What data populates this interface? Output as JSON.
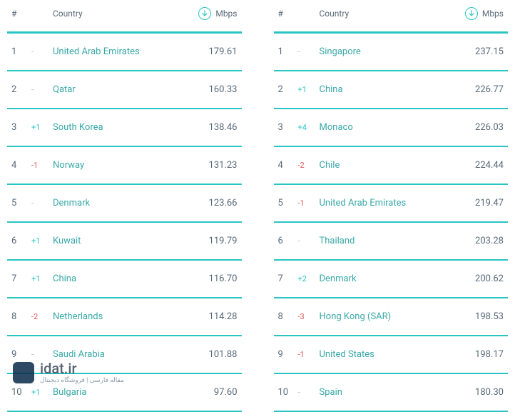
{
  "colors": {
    "divider": "#2bc4c4",
    "text_muted": "#5a6a7a",
    "link": "#3aa8a8",
    "change_up": "#2bc4c4",
    "change_down": "#e05a5a",
    "change_dash": "#b0b8c0",
    "background": "#ffffff"
  },
  "typography": {
    "header_fontsize": 12,
    "row_fontsize": 13,
    "change_fontsize": 11
  },
  "headers": {
    "rank": "#",
    "country": "Country",
    "mbps": "Mbps",
    "mbps_icon": "download-icon"
  },
  "left_table": {
    "rows": [
      {
        "rank": "1",
        "change": "-",
        "change_dir": "dash",
        "country": "United Arab Emirates",
        "mbps": "179.61"
      },
      {
        "rank": "2",
        "change": "-",
        "change_dir": "dash",
        "country": "Qatar",
        "mbps": "160.33"
      },
      {
        "rank": "3",
        "change": "+1",
        "change_dir": "up",
        "country": "South Korea",
        "mbps": "138.46"
      },
      {
        "rank": "4",
        "change": "-1",
        "change_dir": "down",
        "country": "Norway",
        "mbps": "131.23"
      },
      {
        "rank": "5",
        "change": "-",
        "change_dir": "dash",
        "country": "Denmark",
        "mbps": "123.66"
      },
      {
        "rank": "6",
        "change": "+1",
        "change_dir": "up",
        "country": "Kuwait",
        "mbps": "119.79"
      },
      {
        "rank": "7",
        "change": "+1",
        "change_dir": "up",
        "country": "China",
        "mbps": "116.70"
      },
      {
        "rank": "8",
        "change": "-2",
        "change_dir": "down",
        "country": "Netherlands",
        "mbps": "114.28"
      },
      {
        "rank": "9",
        "change": "-",
        "change_dir": "dash",
        "country": "Saudi Arabia",
        "mbps": "101.88"
      },
      {
        "rank": "10",
        "change": "+1",
        "change_dir": "up",
        "country": "Bulgaria",
        "mbps": "97.60"
      }
    ]
  },
  "right_table": {
    "rows": [
      {
        "rank": "1",
        "change": "-",
        "change_dir": "dash",
        "country": "Singapore",
        "mbps": "237.15"
      },
      {
        "rank": "2",
        "change": "+1",
        "change_dir": "up",
        "country": "China",
        "mbps": "226.77"
      },
      {
        "rank": "3",
        "change": "+4",
        "change_dir": "up",
        "country": "Monaco",
        "mbps": "226.03"
      },
      {
        "rank": "4",
        "change": "-2",
        "change_dir": "down",
        "country": "Chile",
        "mbps": "224.44"
      },
      {
        "rank": "5",
        "change": "-1",
        "change_dir": "down",
        "country": "United Arab Emirates",
        "mbps": "219.47"
      },
      {
        "rank": "6",
        "change": "-",
        "change_dir": "dash",
        "country": "Thailand",
        "mbps": "203.28"
      },
      {
        "rank": "7",
        "change": "+2",
        "change_dir": "up",
        "country": "Denmark",
        "mbps": "200.62"
      },
      {
        "rank": "8",
        "change": "-3",
        "change_dir": "down",
        "country": "Hong Kong (SAR)",
        "mbps": "198.53"
      },
      {
        "rank": "9",
        "change": "-1",
        "change_dir": "down",
        "country": "United States",
        "mbps": "198.17"
      },
      {
        "rank": "10",
        "change": "-",
        "change_dir": "dash",
        "country": "Spain",
        "mbps": "180.30"
      }
    ]
  },
  "watermark": {
    "main": "idat.ir",
    "sub": "مقاله فارسی | فروشگاه دیجیتال"
  }
}
